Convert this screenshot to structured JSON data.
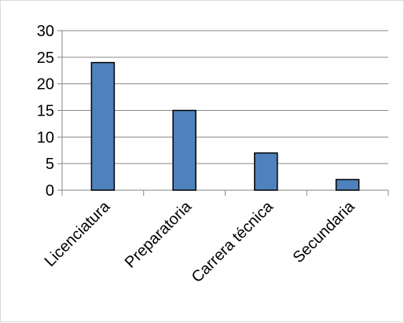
{
  "chart_data": {
    "type": "bar",
    "categories": [
      "Licenciatura",
      "Preparatoria",
      "Carrera técnica",
      "Secundaria"
    ],
    "values": [
      24,
      15,
      7,
      2
    ],
    "title": "",
    "xlabel": "",
    "ylabel": "",
    "ylim": [
      0,
      30
    ],
    "yticks": [
      0,
      5,
      10,
      15,
      20,
      25,
      30
    ],
    "grid": true,
    "legend": "none",
    "bar_color": "#4f81bd",
    "bar_edge_color": "#000000",
    "grid_color": "#868686"
  }
}
